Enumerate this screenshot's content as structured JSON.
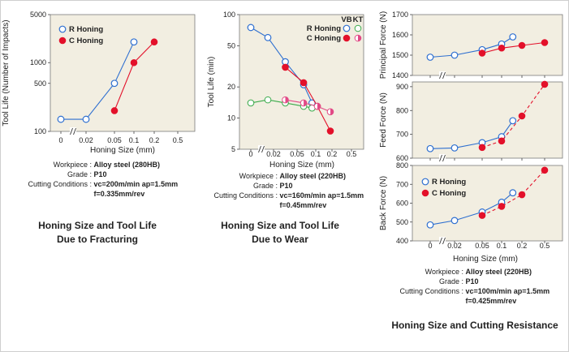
{
  "chart_data": [
    {
      "id": "fracture",
      "type": "line",
      "yscale": "log",
      "ylabel": "Tool Life (Number of Impacts)",
      "xlabel": "Honing Size (mm)",
      "xticks": [
        "0",
        "0.02",
        "0.05",
        "0.1",
        "0.2",
        "0.5"
      ],
      "yticks": [
        100,
        500,
        1000,
        5000
      ],
      "ylim": [
        100,
        5000
      ],
      "legend": [
        "R Honing",
        "C Honing"
      ],
      "series": [
        {
          "name": "R Honing",
          "style": "open-blue",
          "points": [
            [
              0,
              150
            ],
            [
              1,
              150
            ],
            [
              2,
              500
            ],
            [
              3,
              2000
            ]
          ]
        },
        {
          "name": "C Honing",
          "style": "filled-red",
          "points": [
            [
              2,
              200
            ],
            [
              3,
              1000
            ],
            [
              4,
              2000
            ]
          ]
        }
      ]
    },
    {
      "id": "wear",
      "type": "line",
      "yscale": "log",
      "ylabel": "Tool Life (min)",
      "xlabel": "Honing Size (mm)",
      "xticks": [
        "0",
        "0.02",
        "0.05",
        "0.1",
        "0.2",
        "0.5"
      ],
      "yticks": [
        5,
        10,
        20,
        50,
        100
      ],
      "ylim": [
        5,
        100
      ],
      "legend_header": [
        "VB",
        "KT"
      ],
      "legend": [
        "R Honing",
        "C Honing"
      ],
      "series": [
        {
          "name": "R Honing VB",
          "style": "open-blue",
          "points": [
            [
              0,
              75
            ],
            [
              0.75,
              60
            ],
            [
              1.5,
              35
            ],
            [
              2.35,
              21
            ],
            [
              2.8,
              14
            ]
          ]
        },
        {
          "name": "C Honing VB",
          "style": "filled-red",
          "points": [
            [
              1.5,
              31
            ],
            [
              2.35,
              22
            ],
            [
              3.1,
              13
            ],
            [
              3.9,
              7.5
            ]
          ]
        },
        {
          "name": "R Honing KT",
          "style": "open-green",
          "points": [
            [
              0,
              14
            ],
            [
              0.75,
              15
            ],
            [
              1.5,
              14
            ],
            [
              2.35,
              13
            ],
            [
              2.8,
              12.5
            ]
          ]
        },
        {
          "name": "C Honing KT",
          "style": "half-pink",
          "points": [
            [
              1.5,
              15
            ],
            [
              2.35,
              14
            ],
            [
              3.1,
              13
            ],
            [
              3.9,
              11.5
            ]
          ]
        }
      ]
    },
    {
      "id": "principal",
      "type": "line",
      "ylabel": "Principal Force (N)",
      "yticks": [
        1400,
        1500,
        1600,
        1700
      ],
      "ylim": [
        1400,
        1700
      ],
      "series": [
        {
          "name": "R Honing",
          "style": "open-blue",
          "points": [
            [
              0,
              1490
            ],
            [
              1,
              1500
            ],
            [
              2,
              1527
            ],
            [
              3,
              1555
            ],
            [
              3.55,
              1590
            ]
          ]
        },
        {
          "name": "C Honing",
          "style": "filled-red",
          "points": [
            [
              2,
              1510
            ],
            [
              3,
              1535
            ],
            [
              4,
              1548
            ],
            [
              5,
              1562
            ]
          ]
        }
      ]
    },
    {
      "id": "feed",
      "type": "line",
      "ylabel": "Feed Force (N)",
      "yticks": [
        600,
        700,
        800,
        900
      ],
      "ylim": [
        600,
        920
      ],
      "series": [
        {
          "name": "R Honing",
          "style": "open-blue",
          "points": [
            [
              0,
              640
            ],
            [
              1,
              643
            ],
            [
              2,
              665
            ],
            [
              3,
              690
            ],
            [
              3.55,
              757
            ]
          ]
        },
        {
          "name": "C Honing",
          "style": "filled-red-dashed",
          "points": [
            [
              2,
              645
            ],
            [
              3,
              672
            ],
            [
              4,
              777
            ],
            [
              5,
              910
            ]
          ]
        }
      ]
    },
    {
      "id": "back",
      "type": "line",
      "ylabel": "Back Force (N)",
      "xlabel": "Honing Size (mm)",
      "xticks": [
        "0",
        "0.02",
        "0.05",
        "0.1",
        "0.2",
        "0.5"
      ],
      "yticks": [
        400,
        500,
        600,
        700,
        800
      ],
      "ylim": [
        400,
        800
      ],
      "legend": [
        "R Honing",
        "C Honing"
      ],
      "series": [
        {
          "name": "R Honing",
          "style": "open-blue",
          "points": [
            [
              0,
              485
            ],
            [
              1,
              508
            ],
            [
              2,
              553
            ],
            [
              3,
              605
            ],
            [
              3.55,
              655
            ]
          ]
        },
        {
          "name": "C Honing",
          "style": "filled-red-dashed",
          "points": [
            [
              2,
              535
            ],
            [
              3,
              583
            ],
            [
              4,
              645
            ],
            [
              5,
              775
            ]
          ]
        }
      ]
    }
  ],
  "info1": {
    "workpiece_label": "Workpiece :",
    "workpiece": "Alloy steel  (280HB)",
    "grade_label": "Grade :",
    "grade": "P10",
    "cond_label": "Cutting Conditions :",
    "cond1": "vc=200m/min  ap=1.5mm",
    "cond2": "f=0.335mm/rev"
  },
  "info2": {
    "workpiece_label": "Workpiece :",
    "workpiece": "Alloy steel  (220HB)",
    "grade_label": "Grade :",
    "grade": "P10",
    "cond_label": "Cutting Conditions :",
    "cond1": "vc=160m/min  ap=1.5mm",
    "cond2": "f=0.45mm/rev"
  },
  "info3": {
    "workpiece_label": "Workpiece :",
    "workpiece": "Alloy steel  (220HB)",
    "grade_label": "Grade :",
    "grade": "P10",
    "cond_label": "Cutting Conditions :",
    "cond1": "vc=100m/min  ap=1.5mm",
    "cond2": "f=0.425mm/rev"
  },
  "captions": {
    "c1_line1": "Honing Size and Tool Life",
    "c1_line2": "Due to Fracturing",
    "c2_line1": "Honing Size and Tool Life",
    "c2_line2": "Due to Wear",
    "c3": "Honing Size and Cutting Resistance"
  },
  "colors": {
    "blue": "#2e6fd0",
    "red": "#e3102a",
    "green": "#3aaa4a",
    "pink": "#e24a86",
    "bg": "#f2eee1"
  }
}
